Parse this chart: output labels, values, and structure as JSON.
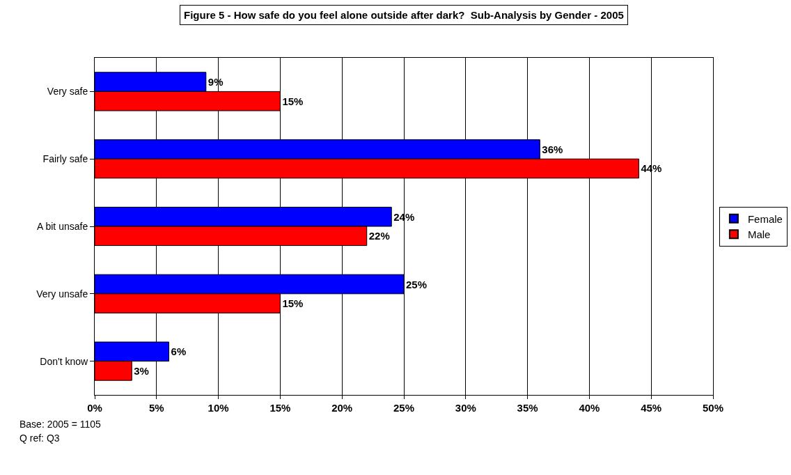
{
  "chart_data": {
    "type": "bar",
    "orientation": "horizontal",
    "title": "Figure 5 - How safe do you feel alone outside after dark?  Sub-Analysis by Gender - 2005",
    "categories": [
      "Very safe",
      "Fairly safe",
      "A bit unsafe",
      "Very unsafe",
      "Don't know"
    ],
    "series": [
      {
        "name": "Female",
        "color": "#0000ff",
        "values": [
          9,
          36,
          24,
          25,
          6
        ],
        "value_labels": [
          "9%",
          "36%",
          "24%",
          "25%",
          "6%"
        ]
      },
      {
        "name": "Male",
        "color": "#ff0000",
        "values": [
          15,
          44,
          22,
          15,
          3
        ],
        "value_labels": [
          "15%",
          "44%",
          "22%",
          "15%",
          "3%"
        ]
      }
    ],
    "xlim": [
      0,
      50
    ],
    "xticks": [
      {
        "value": 0,
        "label": "0%"
      },
      {
        "value": 5,
        "label": "5%"
      },
      {
        "value": 10,
        "label": "10%"
      },
      {
        "value": 15,
        "label": "15%"
      },
      {
        "value": 20,
        "label": "20%"
      },
      {
        "value": 25,
        "label": "25%"
      },
      {
        "value": 30,
        "label": "30%"
      },
      {
        "value": 35,
        "label": "35%"
      },
      {
        "value": 40,
        "label": "40%"
      },
      {
        "value": 45,
        "label": "45%"
      },
      {
        "value": 50,
        "label": "50%"
      }
    ],
    "grid": "x",
    "legend": "right",
    "annotations": [
      "Base: 2005 = 1105",
      "Q ref: Q3"
    ]
  }
}
